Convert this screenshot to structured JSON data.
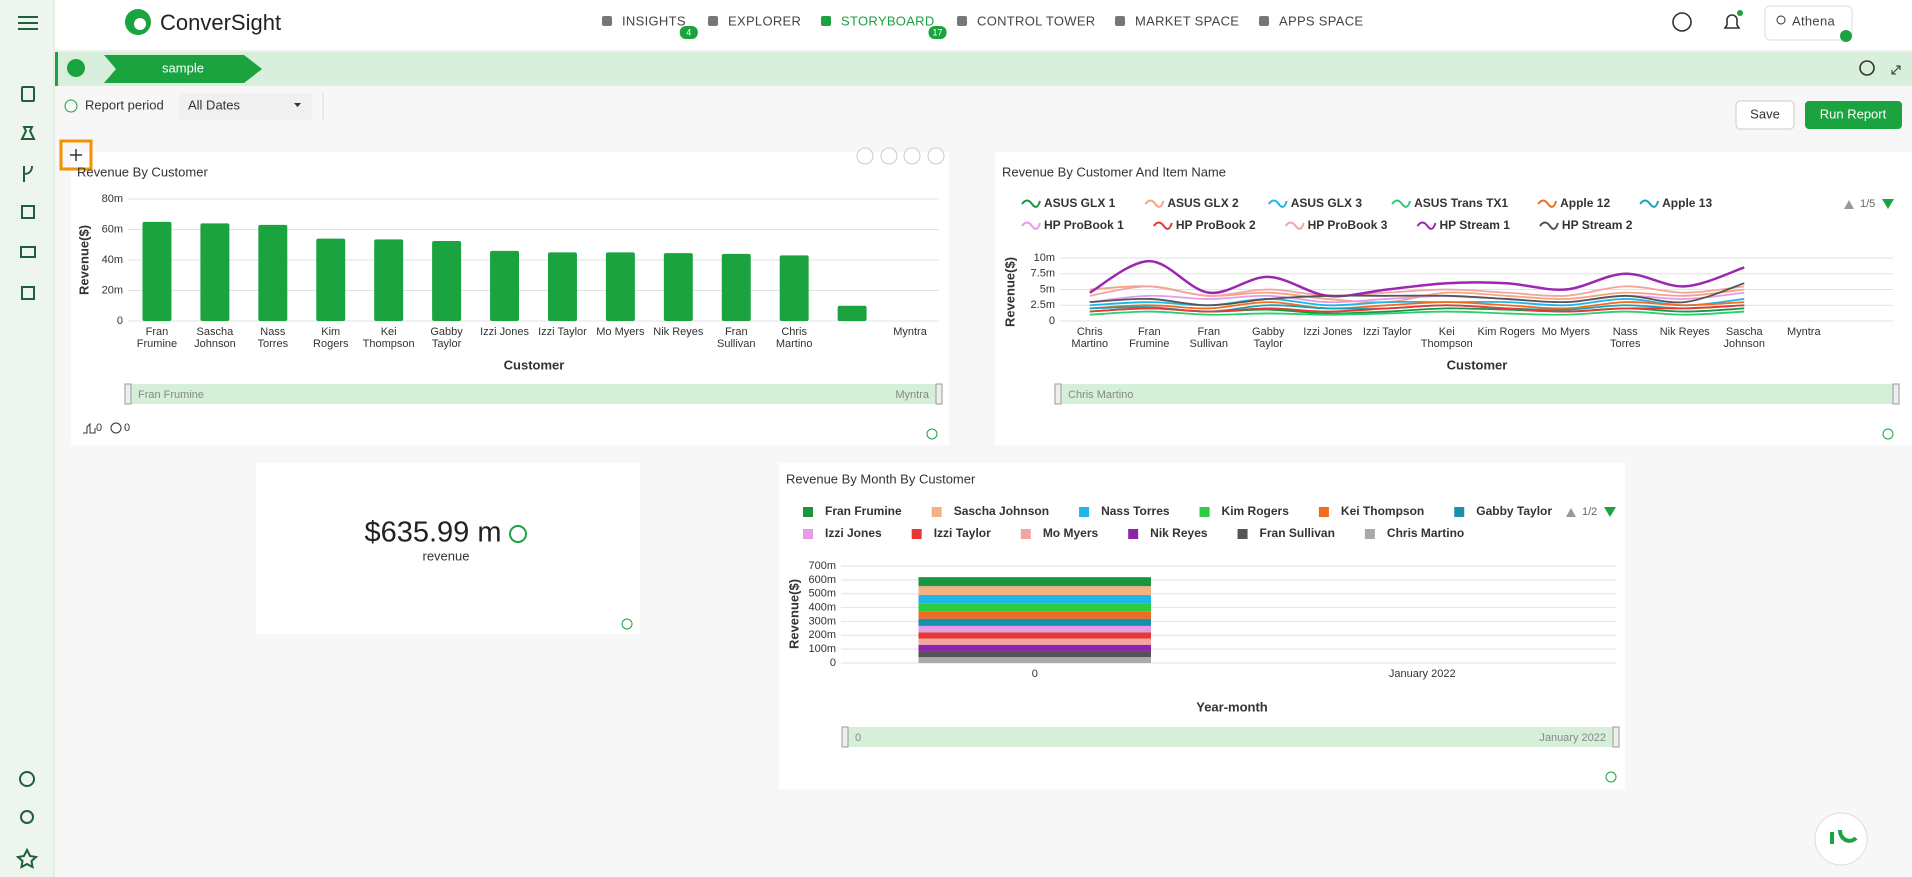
{
  "nav": {
    "brand": "ConverSight",
    "items": [
      {
        "label": "INSIGHTS",
        "badge": "4"
      },
      {
        "label": "EXPLORER"
      },
      {
        "label": "STORYBOARD",
        "badge": "17"
      },
      {
        "label": "CONTROL TOWER"
      },
      {
        "label": "MARKET SPACE"
      },
      {
        "label": "APPS SPACE"
      }
    ],
    "user": "Athena"
  },
  "storyboard": {
    "tab": "sample",
    "report_period": "Report period",
    "date_filter": "All Dates",
    "save": "Save",
    "run": "Run Report"
  },
  "chart_data": [
    {
      "type": "bar",
      "title": "Revenue By Customer",
      "xlabel": "Customer",
      "ylabel": "Revenue($)",
      "color": "#1aa33f",
      "categories": [
        "Fran Frumine",
        "Sascha Johnson",
        "Nass Torres",
        "Kim Rogers",
        "Kei Thompson",
        "Gabby Taylor",
        "Izzi Jones",
        "Izzi Taylor",
        "Mo Myers",
        "Nik Reyes",
        "Fran Sullivan",
        "Chris Martino",
        null,
        "Myntra"
      ],
      "values": [
        65,
        64,
        63,
        54,
        53.5,
        52.5,
        46,
        45,
        45,
        44.5,
        44,
        43,
        10,
        0
      ],
      "ylim": [
        0,
        80
      ],
      "yticks": [
        0,
        {
          "value": 20,
          "label": "20m"
        },
        {
          "value": 40,
          "label": "40m"
        },
        {
          "value": 60,
          "label": "60m"
        },
        {
          "value": 80,
          "label": "80m"
        }
      ],
      "grid": true,
      "zoom_labels": [
        "Fran Frumine",
        "Myntra"
      ],
      "likes": "0",
      "comments": "0"
    },
    {
      "type": "line",
      "title": "Revenue By Customer And Item Name",
      "xlabel": "Customer",
      "ylabel": "Revenue($)",
      "pagination": "1/5",
      "categories": [
        "Chris Martino",
        "Fran Frumine",
        "Fran Sullivan",
        "Gabby Taylor",
        "Izzi Jones",
        "Izzi Taylor",
        "Kei Thompson",
        "Kim Rogers",
        "Mo Myers",
        "Nass Torres",
        "Nik Reyes",
        "Sascha Johnson",
        "Myntra",
        null
      ],
      "series": [
        {
          "name": "ASUS GLX 1",
          "color": "#1a9641",
          "values": [
            1.5,
            2,
            1.5,
            1.8,
            1.2,
            1.5,
            2,
            1.8,
            1.5,
            2,
            1.5,
            2,
            null,
            null
          ]
        },
        {
          "name": "ASUS GLX 2",
          "color": "#f4a582",
          "values": [
            5,
            5.5,
            4,
            4.5,
            3.5,
            3,
            4.5,
            4,
            3.5,
            4.5,
            4,
            5,
            null,
            null
          ]
        },
        {
          "name": "ASUS GLX 3",
          "color": "#1fb5e6",
          "values": [
            2.5,
            3,
            2.5,
            3.5,
            2.5,
            3,
            3,
            3,
            2.5,
            3.5,
            2.5,
            3.5,
            null,
            null
          ]
        },
        {
          "name": "ASUS Trans TX1",
          "color": "#2ecc71",
          "values": [
            1,
            1.5,
            1,
            1.2,
            1,
            1.2,
            1.5,
            1.2,
            1,
            1.5,
            1,
            1.5,
            null,
            null
          ]
        },
        {
          "name": "Apple 12",
          "color": "#f26b21",
          "values": [
            2,
            2.5,
            2,
            3,
            2,
            2.5,
            3,
            2.5,
            2,
            3,
            2.5,
            3,
            null,
            null
          ]
        },
        {
          "name": "Apple 13",
          "color": "#1aa3b0",
          "values": [
            2,
            2.2,
            1.5,
            2.5,
            2,
            2,
            2.5,
            2,
            1.8,
            2.5,
            2,
            2.5,
            null,
            null
          ]
        },
        {
          "name": "HP ProBook 1",
          "color": "#e59be9",
          "values": [
            3,
            4,
            3.5,
            4,
            3,
            3.5,
            4,
            3.5,
            3,
            4,
            3.5,
            4.5,
            null,
            null
          ]
        },
        {
          "name": "HP ProBook 2",
          "color": "#e53935",
          "values": [
            1.5,
            2,
            1.5,
            2,
            1.5,
            2,
            2.5,
            2,
            1.5,
            2,
            2,
            2.5,
            null,
            null
          ]
        },
        {
          "name": "HP ProBook 3",
          "color": "#f4a3a3",
          "values": [
            4,
            5.5,
            4,
            5,
            4,
            4.5,
            5,
            4.5,
            4,
            5.5,
            4.5,
            5.5,
            null,
            null
          ]
        },
        {
          "name": "HP Stream 1",
          "color": "#9c27b0",
          "values": [
            4.5,
            9.5,
            4.5,
            7,
            4,
            5,
            6,
            6,
            5,
            7.5,
            5.5,
            8.5,
            null,
            null
          ]
        },
        {
          "name": "HP Stream 2",
          "color": "#555555",
          "values": [
            3,
            3.5,
            2.5,
            3.5,
            4,
            4,
            4,
            3.5,
            3,
            4,
            3,
            6,
            null,
            null
          ]
        }
      ],
      "ylim": [
        0,
        10
      ],
      "yticks": [
        0,
        {
          "value": 2.5,
          "label": "2.5m"
        },
        {
          "value": 5,
          "label": "5m"
        },
        {
          "value": 7.5,
          "label": "7.5m"
        },
        {
          "value": 10,
          "label": "10m"
        }
      ],
      "grid": true,
      "zoom_labels": [
        "Chris Martino"
      ]
    },
    {
      "type": "kpi",
      "value": "$635.99 m",
      "label": "revenue"
    },
    {
      "type": "stacked_bar",
      "title": "Revenue By Month By Customer",
      "xlabel": "Year-month",
      "ylabel": "Revenue($)",
      "pagination": "1/2",
      "categories": [
        "0",
        "January 2022"
      ],
      "series": [
        {
          "name": "Fran Frumine",
          "color": "#1a9641",
          "values": [
            65,
            0
          ]
        },
        {
          "name": "Sascha Johnson",
          "color": "#f4b183",
          "values": [
            64,
            0
          ]
        },
        {
          "name": "Nass Torres",
          "color": "#1fb5e6",
          "values": [
            63,
            0
          ]
        },
        {
          "name": "Kim Rogers",
          "color": "#2ecc40",
          "values": [
            54,
            0
          ]
        },
        {
          "name": "Kei Thompson",
          "color": "#f26b21",
          "values": [
            53.5,
            0
          ]
        },
        {
          "name": "Gabby Taylor",
          "color": "#1a8fa8",
          "values": [
            52.5,
            0
          ]
        },
        {
          "name": "Izzi Jones",
          "color": "#e59be9",
          "values": [
            46,
            0
          ]
        },
        {
          "name": "Izzi Taylor",
          "color": "#e53935",
          "values": [
            45,
            0
          ]
        },
        {
          "name": "Mo Myers",
          "color": "#f4a3a3",
          "values": [
            45,
            0
          ]
        },
        {
          "name": "Nik Reyes",
          "color": "#8e24aa",
          "values": [
            44.5,
            0
          ]
        },
        {
          "name": "Fran Sullivan",
          "color": "#555555",
          "values": [
            44,
            0
          ]
        },
        {
          "name": "Chris Martino",
          "color": "#aaaaaa",
          "values": [
            43,
            0
          ]
        }
      ],
      "ylim": [
        0,
        700
      ],
      "yticks": [
        0,
        {
          "value": 100,
          "label": "100m"
        },
        {
          "value": 200,
          "label": "200m"
        },
        {
          "value": 300,
          "label": "300m"
        },
        {
          "value": 400,
          "label": "400m"
        },
        {
          "value": 500,
          "label": "500m"
        },
        {
          "value": 600,
          "label": "600m"
        },
        {
          "value": 700,
          "label": "700m"
        }
      ],
      "grid": true,
      "zoom_labels": [
        "0",
        "January 2022"
      ]
    }
  ]
}
